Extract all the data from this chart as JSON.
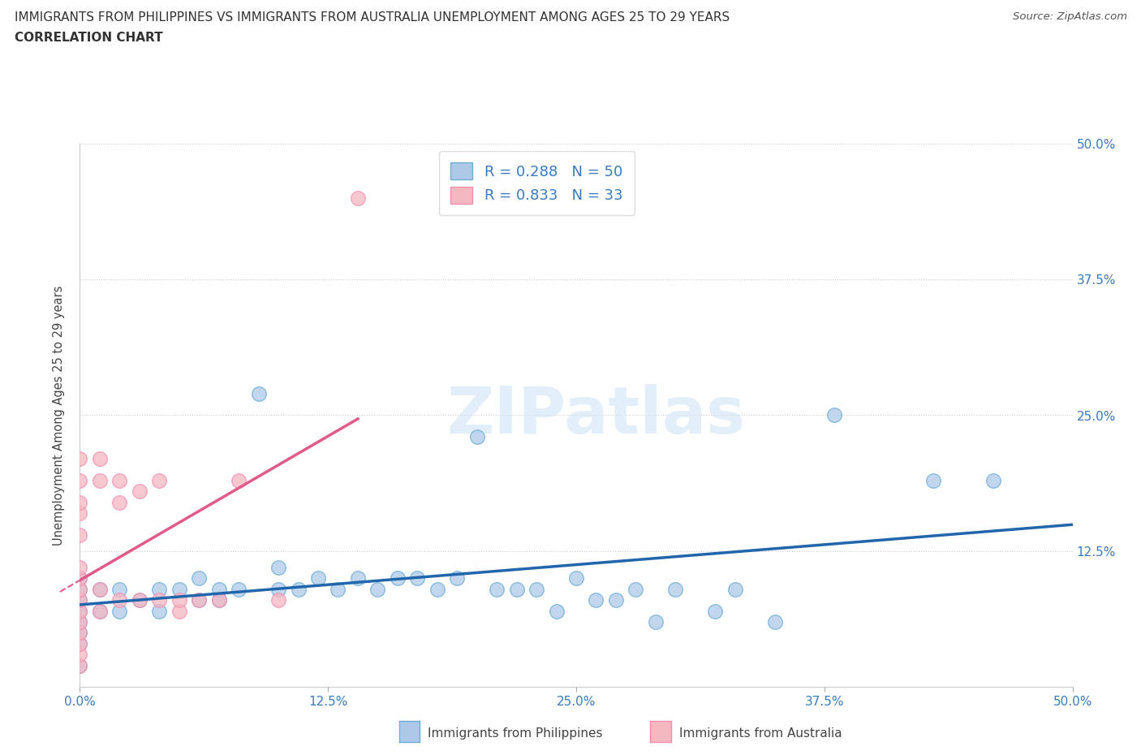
{
  "title_line1": "IMMIGRANTS FROM PHILIPPINES VS IMMIGRANTS FROM AUSTRALIA UNEMPLOYMENT AMONG AGES 25 TO 29 YEARS",
  "title_line2": "CORRELATION CHART",
  "source_text": "Source: ZipAtlas.com",
  "ylabel": "Unemployment Among Ages 25 to 29 years",
  "xlim": [
    0.0,
    0.5
  ],
  "ylim": [
    0.0,
    0.5
  ],
  "xtick_vals": [
    0.0,
    0.125,
    0.25,
    0.375,
    0.5
  ],
  "ytick_vals": [
    0.125,
    0.25,
    0.375,
    0.5
  ],
  "philippines_color": "#aec9e8",
  "philippines_edge": "#6baed6",
  "australia_color": "#f4b8c1",
  "australia_edge": "#f48fb1",
  "trendline_philippines_color": "#2166ac",
  "trendline_australia_color": "#e05a8a",
  "R_philippines": 0.288,
  "N_philippines": 50,
  "R_australia": 0.833,
  "N_australia": 33,
  "legend_label_philippines": "Immigrants from Philippines",
  "legend_label_australia": "Immigrants from Australia",
  "watermark": "ZIPatlas",
  "philippines_x": [
    0.0,
    0.0,
    0.0,
    0.0,
    0.0,
    0.0,
    0.0,
    0.0,
    0.01,
    0.01,
    0.02,
    0.02,
    0.03,
    0.04,
    0.04,
    0.05,
    0.06,
    0.06,
    0.07,
    0.07,
    0.08,
    0.09,
    0.1,
    0.1,
    0.11,
    0.12,
    0.13,
    0.14,
    0.15,
    0.16,
    0.17,
    0.18,
    0.19,
    0.2,
    0.21,
    0.22,
    0.23,
    0.24,
    0.25,
    0.26,
    0.27,
    0.28,
    0.29,
    0.3,
    0.32,
    0.33,
    0.35,
    0.38,
    0.43,
    0.46
  ],
  "philippines_y": [
    0.02,
    0.04,
    0.05,
    0.06,
    0.07,
    0.08,
    0.09,
    0.1,
    0.07,
    0.09,
    0.07,
    0.09,
    0.08,
    0.07,
    0.09,
    0.09,
    0.08,
    0.1,
    0.08,
    0.09,
    0.09,
    0.27,
    0.09,
    0.11,
    0.09,
    0.1,
    0.09,
    0.1,
    0.09,
    0.1,
    0.1,
    0.09,
    0.1,
    0.23,
    0.09,
    0.09,
    0.09,
    0.07,
    0.1,
    0.08,
    0.08,
    0.09,
    0.06,
    0.09,
    0.07,
    0.09,
    0.06,
    0.25,
    0.19,
    0.19
  ],
  "australia_x": [
    0.0,
    0.0,
    0.0,
    0.0,
    0.0,
    0.0,
    0.0,
    0.0,
    0.0,
    0.0,
    0.0,
    0.0,
    0.0,
    0.0,
    0.0,
    0.01,
    0.01,
    0.01,
    0.01,
    0.02,
    0.02,
    0.02,
    0.03,
    0.03,
    0.04,
    0.04,
    0.05,
    0.05,
    0.06,
    0.07,
    0.08,
    0.1,
    0.14
  ],
  "australia_y": [
    0.02,
    0.03,
    0.04,
    0.05,
    0.06,
    0.07,
    0.08,
    0.09,
    0.1,
    0.11,
    0.14,
    0.16,
    0.17,
    0.19,
    0.21,
    0.07,
    0.09,
    0.19,
    0.21,
    0.08,
    0.17,
    0.19,
    0.08,
    0.18,
    0.08,
    0.19,
    0.07,
    0.08,
    0.08,
    0.08,
    0.19,
    0.08,
    0.45
  ]
}
